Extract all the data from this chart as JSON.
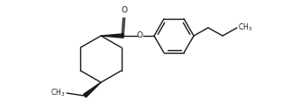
{
  "background": "#ffffff",
  "line_color": "#1a1a1a",
  "line_width": 1.0,
  "fig_width": 3.34,
  "fig_height": 1.24,
  "dpi": 100
}
